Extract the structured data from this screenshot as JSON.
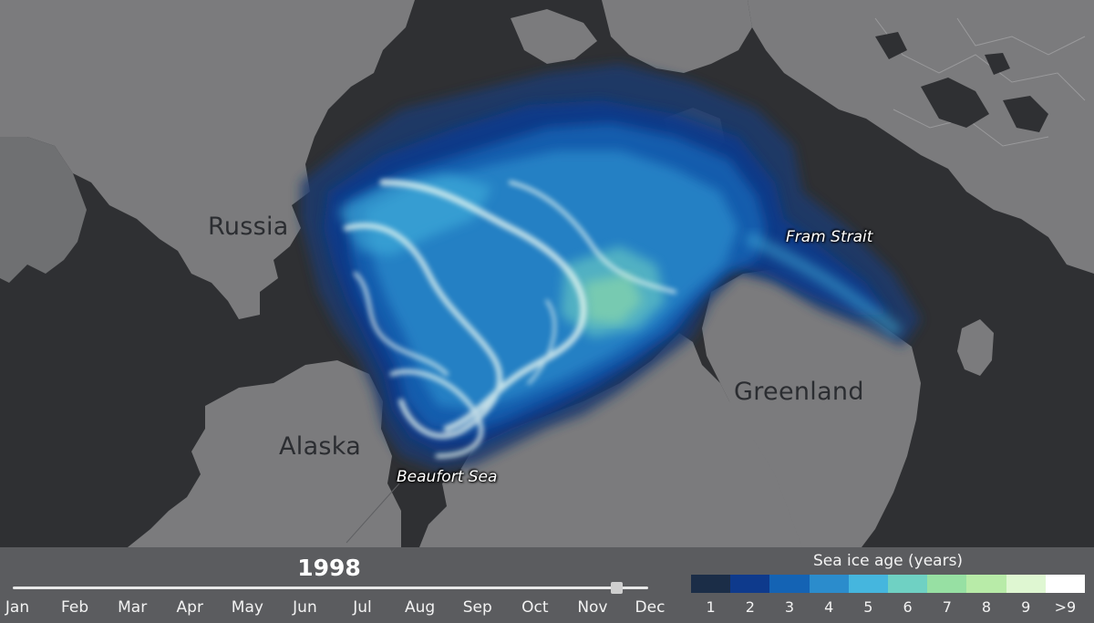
{
  "map": {
    "labels": [
      {
        "key": "russia",
        "text": "Russia"
      },
      {
        "key": "alaska",
        "text": "Alaska"
      },
      {
        "key": "greenland",
        "text": "Greenland"
      }
    ],
    "callouts": [
      {
        "key": "fram-strait",
        "text": "Fram Strait"
      },
      {
        "key": "beaufort-sea",
        "text": "Beaufort Sea"
      }
    ],
    "colors": {
      "ocean": "#2f3033",
      "land": "#7b7b7d",
      "border": "#9a9a9c"
    }
  },
  "timeline": {
    "year": "1998",
    "months": [
      "Jan",
      "Feb",
      "Mar",
      "Apr",
      "May",
      "Jun",
      "Jul",
      "Aug",
      "Sep",
      "Oct",
      "Nov",
      "Dec"
    ],
    "progress": 0.95
  },
  "legend": {
    "title": "Sea ice age (years)",
    "items": [
      {
        "label": "1",
        "color": "#1b2d47"
      },
      {
        "label": "2",
        "color": "#0e3a8c"
      },
      {
        "label": "3",
        "color": "#1463b4"
      },
      {
        "label": "4",
        "color": "#2b8ccc"
      },
      {
        "label": "5",
        "color": "#45b6de"
      },
      {
        "label": "6",
        "color": "#6fd1c3"
      },
      {
        "label": "7",
        "color": "#97e0a3"
      },
      {
        "label": "8",
        "color": "#b8eba8"
      },
      {
        "label": "9",
        "color": "#dff7d2"
      },
      {
        "label": ">9",
        "color": "#ffffff"
      }
    ]
  }
}
